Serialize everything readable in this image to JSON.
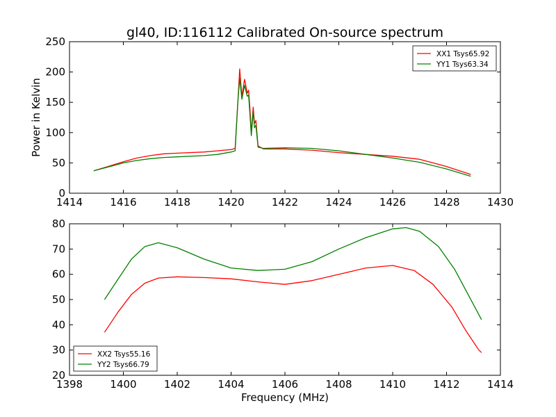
{
  "title": "gl40, ID:116112 Calibrated On-source spectrum",
  "colors": {
    "xx": "#ff0000",
    "yy": "#008000"
  },
  "chart_data": [
    {
      "type": "line",
      "title": "gl40, ID:116112 Calibrated On-source spectrum",
      "xlabel": "",
      "ylabel": "Power in Kelvin",
      "xlim": [
        1414,
        1430
      ],
      "ylim": [
        0,
        250
      ],
      "xticks": [
        "1414",
        "1416",
        "1418",
        "1420",
        "1422",
        "1424",
        "1426",
        "1428",
        "1430"
      ],
      "yticks": [
        "0",
        "50",
        "100",
        "150",
        "200",
        "250"
      ],
      "legend_position": "top-right",
      "series": [
        {
          "name": "XX1 Tsys65.92",
          "color": "#ff0000",
          "points": [
            [
              1414.9,
              37
            ],
            [
              1415.5,
              45
            ],
            [
              1416,
              52
            ],
            [
              1416.5,
              58
            ],
            [
              1417,
              62
            ],
            [
              1417.5,
              65
            ],
            [
              1418,
              66
            ],
            [
              1419,
              68
            ],
            [
              1419.5,
              70
            ],
            [
              1420,
              72
            ],
            [
              1420.15,
              74
            ],
            [
              1420.25,
              150
            ],
            [
              1420.32,
              205
            ],
            [
              1420.4,
              160
            ],
            [
              1420.5,
              188
            ],
            [
              1420.6,
              165
            ],
            [
              1420.65,
              170
            ],
            [
              1420.7,
              140
            ],
            [
              1420.75,
              100
            ],
            [
              1420.82,
              142
            ],
            [
              1420.87,
              115
            ],
            [
              1420.92,
              120
            ],
            [
              1421,
              78
            ],
            [
              1421.2,
              73
            ],
            [
              1422,
              73
            ],
            [
              1423,
              71
            ],
            [
              1424,
              67
            ],
            [
              1425,
              64
            ],
            [
              1426,
              61
            ],
            [
              1427,
              56
            ],
            [
              1428,
              44
            ],
            [
              1428.9,
              31
            ]
          ]
        },
        {
          "name": "YY1 Tsys63.34",
          "color": "#008000",
          "points": [
            [
              1414.9,
              37
            ],
            [
              1415.5,
              44
            ],
            [
              1416,
              50
            ],
            [
              1416.5,
              54
            ],
            [
              1417,
              57
            ],
            [
              1417.5,
              59
            ],
            [
              1418,
              60
            ],
            [
              1419,
              62
            ],
            [
              1419.5,
              64
            ],
            [
              1420,
              68
            ],
            [
              1420.15,
              70
            ],
            [
              1420.25,
              150
            ],
            [
              1420.32,
              190
            ],
            [
              1420.4,
              155
            ],
            [
              1420.5,
              178
            ],
            [
              1420.6,
              160
            ],
            [
              1420.65,
              162
            ],
            [
              1420.7,
              130
            ],
            [
              1420.75,
              95
            ],
            [
              1420.82,
              135
            ],
            [
              1420.87,
              108
            ],
            [
              1420.92,
              112
            ],
            [
              1421,
              76
            ],
            [
              1421.2,
              74
            ],
            [
              1422,
              75
            ],
            [
              1423,
              74
            ],
            [
              1424,
              70
            ],
            [
              1425,
              64
            ],
            [
              1426,
              58
            ],
            [
              1427,
              51
            ],
            [
              1428,
              40
            ],
            [
              1428.9,
              28
            ]
          ]
        }
      ]
    },
    {
      "type": "line",
      "title": "",
      "xlabel": "Frequency (MHz)",
      "ylabel": "",
      "xlim": [
        1398,
        1414
      ],
      "ylim": [
        20,
        80
      ],
      "xticks": [
        "1398",
        "1400",
        "1402",
        "1404",
        "1406",
        "1408",
        "1410",
        "1412",
        "1414"
      ],
      "yticks": [
        "20",
        "30",
        "40",
        "50",
        "60",
        "70",
        "80"
      ],
      "legend_position": "bottom-left",
      "series": [
        {
          "name": "XX2 Tsys55.16",
          "color": "#ff0000",
          "points": [
            [
              1399.3,
              37
            ],
            [
              1399.8,
              45
            ],
            [
              1400.3,
              52
            ],
            [
              1400.8,
              56.5
            ],
            [
              1401.3,
              58.5
            ],
            [
              1402,
              59
            ],
            [
              1403,
              58.7
            ],
            [
              1404,
              58.2
            ],
            [
              1405,
              57
            ],
            [
              1406,
              56
            ],
            [
              1407,
              57.5
            ],
            [
              1408,
              60
            ],
            [
              1409,
              62.5
            ],
            [
              1410,
              63.5
            ],
            [
              1410.8,
              61.5
            ],
            [
              1411.5,
              56
            ],
            [
              1412.2,
              47
            ],
            [
              1412.7,
              38
            ],
            [
              1413.2,
              30
            ],
            [
              1413.3,
              29
            ]
          ]
        },
        {
          "name": "YY2 Tsys66.79",
          "color": "#008000",
          "points": [
            [
              1399.3,
              50
            ],
            [
              1399.8,
              58
            ],
            [
              1400.3,
              66
            ],
            [
              1400.8,
              71
            ],
            [
              1401.3,
              72.5
            ],
            [
              1402,
              70.5
            ],
            [
              1403,
              66
            ],
            [
              1404,
              62.5
            ],
            [
              1405,
              61.5
            ],
            [
              1406,
              62
            ],
            [
              1407,
              65
            ],
            [
              1408,
              70
            ],
            [
              1409,
              74.5
            ],
            [
              1410,
              78
            ],
            [
              1410.5,
              78.5
            ],
            [
              1411,
              77
            ],
            [
              1411.7,
              71
            ],
            [
              1412.3,
              62
            ],
            [
              1412.8,
              52
            ],
            [
              1413.3,
              42
            ]
          ]
        }
      ]
    }
  ]
}
